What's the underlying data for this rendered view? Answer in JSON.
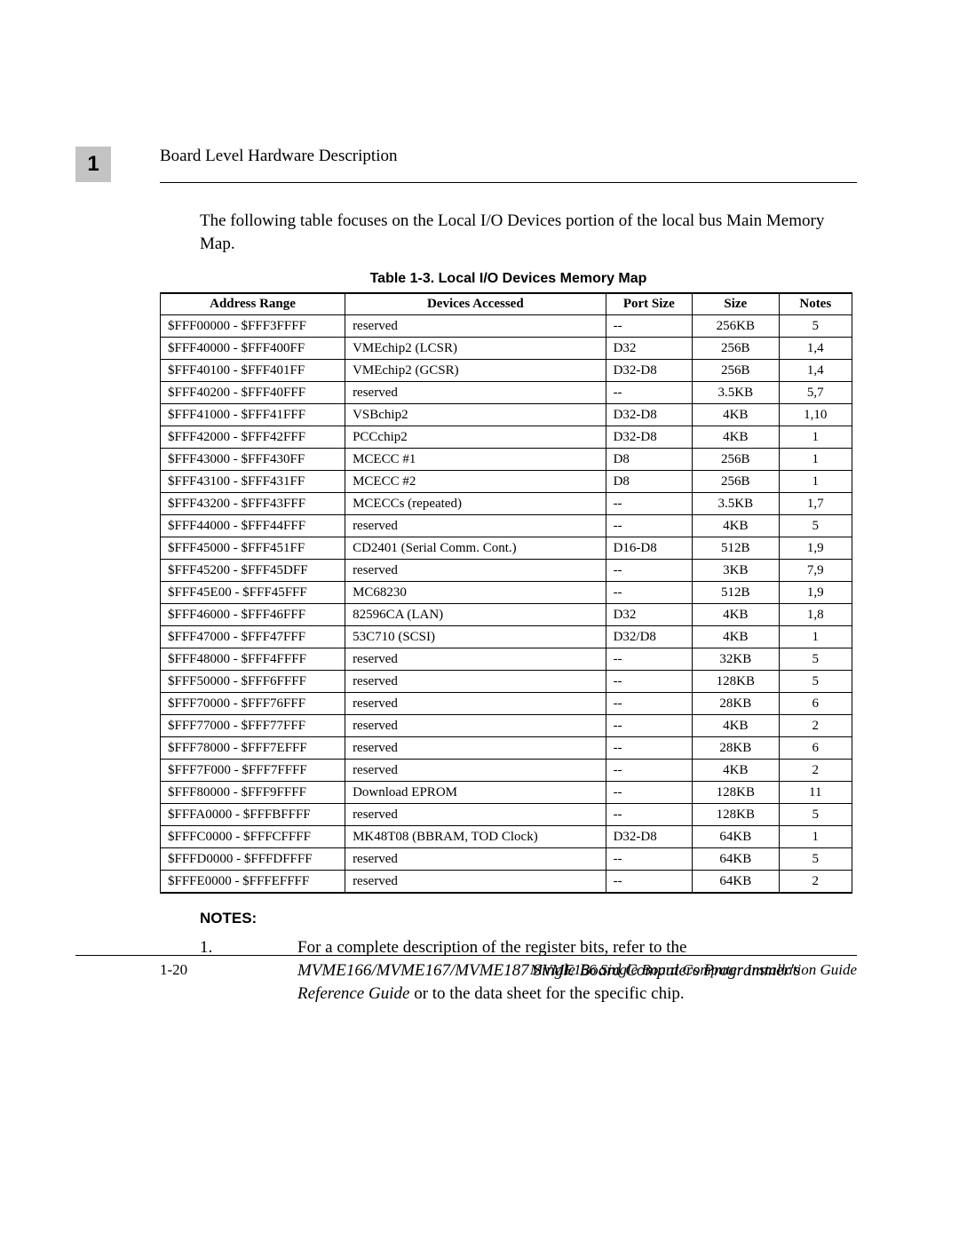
{
  "chapter_number": "1",
  "section_title": "Board Level Hardware Description",
  "intro_text": "The following table focuses on the Local I/O Devices portion of the local bus Main Memory Map.",
  "table_caption": "Table 1-3.  Local I/O Devices Memory Map",
  "columns": {
    "addr": "Address Range",
    "dev": "Devices Accessed",
    "port": "Port Size",
    "size": "Size",
    "notes": "Notes"
  },
  "rows": [
    {
      "addr": "$FFF00000 - $FFF3FFFF",
      "dev": "reserved",
      "port": "--",
      "size": "256KB",
      "notes": "5"
    },
    {
      "addr": "$FFF40000 - $FFF400FF",
      "dev": "VMEchip2 (LCSR)",
      "port": "D32",
      "size": "256B",
      "notes": "1,4"
    },
    {
      "addr": "$FFF40100 - $FFF401FF",
      "dev": "VMEchip2 (GCSR)",
      "port": "D32-D8",
      "size": "256B",
      "notes": "1,4"
    },
    {
      "addr": "$FFF40200 - $FFF40FFF",
      "dev": "reserved",
      "port": "--",
      "size": "3.5KB",
      "notes": "5,7"
    },
    {
      "addr": "$FFF41000 - $FFF41FFF",
      "dev": "VSBchip2",
      "port": "D32-D8",
      "size": "4KB",
      "notes": "1,10"
    },
    {
      "addr": "$FFF42000 - $FFF42FFF",
      "dev": "PCCchip2",
      "port": "D32-D8",
      "size": "4KB",
      "notes": "1"
    },
    {
      "addr": "$FFF43000 - $FFF430FF",
      "dev": "MCECC #1",
      "port": "D8",
      "size": "256B",
      "notes": "1"
    },
    {
      "addr": "$FFF43100 - $FFF431FF",
      "dev": "MCECC #2",
      "port": "D8",
      "size": "256B",
      "notes": "1"
    },
    {
      "addr": "$FFF43200 - $FFF43FFF",
      "dev": "MCECCs (repeated)",
      "port": "--",
      "size": "3.5KB",
      "notes": "1,7"
    },
    {
      "addr": "$FFF44000 - $FFF44FFF",
      "dev": "reserved",
      "port": "--",
      "size": "4KB",
      "notes": "5"
    },
    {
      "addr": "$FFF45000 - $FFF451FF",
      "dev": "CD2401 (Serial Comm. Cont.)",
      "port": "D16-D8",
      "size": "512B",
      "notes": "1,9"
    },
    {
      "addr": "$FFF45200 - $FFF45DFF",
      "dev": "reserved",
      "port": "--",
      "size": "3KB",
      "notes": "7,9"
    },
    {
      "addr": "$FFF45E00 - $FFF45FFF",
      "dev": "MC68230",
      "port": "--",
      "size": "512B",
      "notes": "1,9"
    },
    {
      "addr": "$FFF46000 - $FFF46FFF",
      "dev": "82596CA (LAN)",
      "port": "D32",
      "size": "4KB",
      "notes": "1,8"
    },
    {
      "addr": "$FFF47000 - $FFF47FFF",
      "dev": "53C710 (SCSI)",
      "port": "D32/D8",
      "size": "4KB",
      "notes": "1"
    },
    {
      "addr": "$FFF48000 - $FFF4FFFF",
      "dev": "reserved",
      "port": "--",
      "size": "32KB",
      "notes": "5"
    },
    {
      "addr": "$FFF50000 - $FFF6FFFF",
      "dev": "reserved",
      "port": "--",
      "size": "128KB",
      "notes": "5"
    },
    {
      "addr": "$FFF70000 - $FFF76FFF",
      "dev": "reserved",
      "port": "--",
      "size": "28KB",
      "notes": "6"
    },
    {
      "addr": "$FFF77000 - $FFF77FFF",
      "dev": "reserved",
      "port": "--",
      "size": "4KB",
      "notes": "2"
    },
    {
      "addr": "$FFF78000 - $FFF7EFFF",
      "dev": "reserved",
      "port": "--",
      "size": "28KB",
      "notes": "6"
    },
    {
      "addr": "$FFF7F000 - $FFF7FFFF",
      "dev": "reserved",
      "port": "--",
      "size": "4KB",
      "notes": "2"
    },
    {
      "addr": "$FFF80000 - $FFF9FFFF",
      "dev": "Download EPROM",
      "port": "--",
      "size": "128KB",
      "notes": "11"
    },
    {
      "addr": "$FFFA0000 - $FFFBFFFF",
      "dev": "reserved",
      "port": "--",
      "size": "128KB",
      "notes": "5"
    },
    {
      "addr": "$FFFC0000 - $FFFCFFFF",
      "dev": "MK48T08 (BBRAM, TOD Clock)",
      "port": "D32-D8",
      "size": "64KB",
      "notes": "1"
    },
    {
      "addr": "$FFFD0000 - $FFFDFFFF",
      "dev": "reserved",
      "port": "--",
      "size": "64KB",
      "notes": "5"
    },
    {
      "addr": "$FFFE0000 - $FFFEFFFF",
      "dev": "reserved",
      "port": "--",
      "size": "64KB",
      "notes": "2"
    }
  ],
  "notes_heading": "NOTES:",
  "note1_num": "1.",
  "note1_a": "For a complete description of the register bits, refer to the ",
  "note1_ital": "MVME166/MVME167/MVME187 Single Board Computers Programmer's Reference Guide",
  "note1_b": " or to the data sheet for the specific chip.",
  "footer_page": "1-20",
  "footer_title": "MVME166 Single Board Computer Installation Guide"
}
